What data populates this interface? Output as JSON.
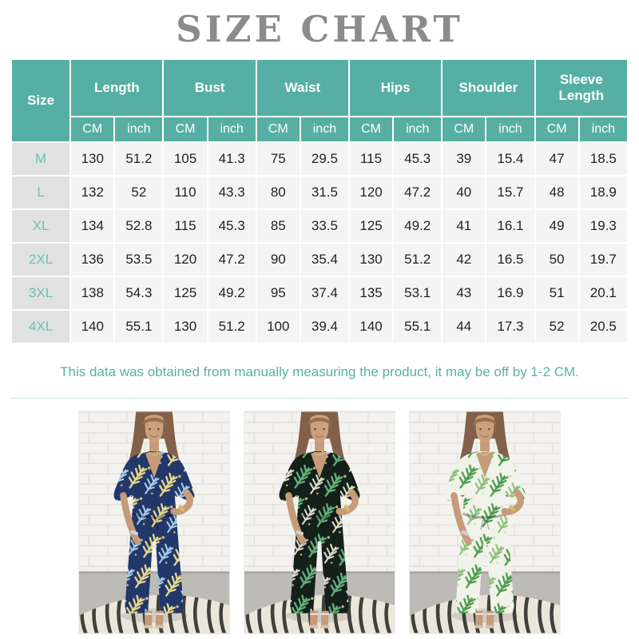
{
  "title": "SIZE CHART",
  "note": "This data was obtained from manually measuring the product, it may be off by 1-2 CM.",
  "colors": {
    "header_teal": "#57afa4",
    "title_gray": "#8b8b8b",
    "size_label_teal": "#6cc0b5",
    "size_column_bg": "#e1e1e1",
    "data_row_bg": "#f4f4f4",
    "note_teal": "#58b0a6",
    "divider_teal": "#c8e3df"
  },
  "chart_data": {
    "type": "table",
    "title": "SIZE CHART",
    "column_groups": [
      "Size",
      "Length",
      "Bust",
      "Waist",
      "Hips",
      "Shoulder",
      "Sleeve Length"
    ],
    "unit_headers": [
      "CM",
      "inch"
    ],
    "rows": [
      {
        "size": "M",
        "values": [
          "130",
          "51.2",
          "105",
          "41.3",
          "75",
          "29.5",
          "115",
          "45.3",
          "39",
          "15.4",
          "47",
          "18.5"
        ]
      },
      {
        "size": "L",
        "values": [
          "132",
          "52",
          "110",
          "43.3",
          "80",
          "31.5",
          "120",
          "47.2",
          "40",
          "15.7",
          "48",
          "18.9"
        ]
      },
      {
        "size": "XL",
        "values": [
          "134",
          "52.8",
          "115",
          "45.3",
          "85",
          "33.5",
          "125",
          "49.2",
          "41",
          "16.1",
          "49",
          "19.3"
        ]
      },
      {
        "size": "2XL",
        "values": [
          "136",
          "53.5",
          "120",
          "47.2",
          "90",
          "35.4",
          "130",
          "51.2",
          "42",
          "16.5",
          "50",
          "19.7"
        ]
      },
      {
        "size": "3XL",
        "values": [
          "138",
          "54.3",
          "125",
          "49.2",
          "95",
          "37.4",
          "135",
          "53.1",
          "43",
          "16.9",
          "51",
          "20.1"
        ]
      },
      {
        "size": "4XL",
        "values": [
          "140",
          "55.1",
          "130",
          "51.2",
          "100",
          "39.4",
          "140",
          "55.1",
          "44",
          "17.3",
          "52",
          "20.5"
        ]
      }
    ],
    "footnote": "This data was obtained from manually measuring the product, it may be off by 1-2 CM."
  },
  "photos": {
    "variants": [
      {
        "name": "navy-leaf-print-jumpsuit",
        "colors": {
          "base": "#22376a",
          "leaf1": "#e9d78a",
          "leaf2": "#a9cdea",
          "dot": "#d9c06a"
        }
      },
      {
        "name": "black-green-leaf-print-jumpsuit",
        "colors": {
          "base": "#14201a",
          "leaf1": "#63b07c",
          "leaf2": "#e2decf",
          "dot": "#c9b26a"
        }
      },
      {
        "name": "white-green-leaf-print-jumpsuit",
        "colors": {
          "base": "#f1f2ea",
          "leaf1": "#4d9c4d",
          "leaf2": "#88bf77",
          "dot": "#cfe3c4"
        }
      }
    ]
  }
}
